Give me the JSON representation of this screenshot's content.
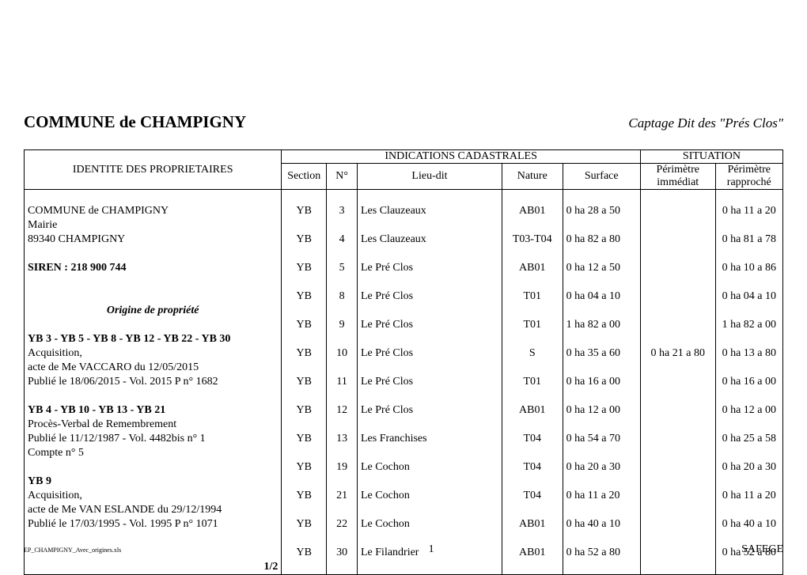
{
  "header": {
    "title": "COMMUNE de CHAMPIGNY",
    "subtitle": "Captage Dit des \"Prés Clos\""
  },
  "columns": {
    "identity": "IDENTITE DES PROPRIETAIRES",
    "indications": "INDICATIONS CADASTRALES",
    "situation": "SITUATION",
    "section": "Section",
    "num": "N°",
    "lieudit": "Lieu-dit",
    "nature": "Nature",
    "surface": "Surface",
    "perim_i_1": "Périmètre",
    "perim_i_2": "immédiat",
    "perim_r_1": "Périmètre",
    "perim_r_2": "rapproché"
  },
  "identity_lines": [
    {
      "t": "",
      "cls": ""
    },
    {
      "t": "COMMUNE de CHAMPIGNY",
      "cls": ""
    },
    {
      "t": "Mairie",
      "cls": ""
    },
    {
      "t": "89340 CHAMPIGNY",
      "cls": ""
    },
    {
      "t": "",
      "cls": ""
    },
    {
      "t": "SIREN : 218 900 744",
      "cls": "bold"
    },
    {
      "t": "",
      "cls": ""
    },
    {
      "t": "",
      "cls": ""
    },
    {
      "t": "Origine de propriété",
      "cls": "ital-center"
    },
    {
      "t": "",
      "cls": ""
    },
    {
      "t": "YB 3 - YB 5 - YB 8 - YB 12 - YB 22 - YB 30",
      "cls": "bold"
    },
    {
      "t": "Acquisition,",
      "cls": ""
    },
    {
      "t": "acte de Me VACCARO du 12/05/2015",
      "cls": ""
    },
    {
      "t": "Publié le 18/06/2015 - Vol. 2015 P n° 1682",
      "cls": ""
    },
    {
      "t": "",
      "cls": ""
    },
    {
      "t": "YB 4 - YB 10 - YB 13 - YB 21",
      "cls": "bold"
    },
    {
      "t": "Procès-Verbal de Remembrement",
      "cls": ""
    },
    {
      "t": "Publié le 11/12/1987 - Vol. 4482bis n° 1",
      "cls": ""
    },
    {
      "t": "Compte n° 5",
      "cls": ""
    },
    {
      "t": "",
      "cls": ""
    },
    {
      "t": "YB 9",
      "cls": "bold"
    },
    {
      "t": "Acquisition,",
      "cls": ""
    },
    {
      "t": "acte de Me VAN ESLANDE du 29/12/1994",
      "cls": ""
    },
    {
      "t": "Publié le 17/03/1995 - Vol. 1995 P n° 1071",
      "cls": ""
    },
    {
      "t": "",
      "cls": ""
    },
    {
      "t": "",
      "cls": ""
    },
    {
      "t": "",
      "cls": ""
    }
  ],
  "right_lines": [
    {
      "section": "",
      "num": "",
      "lieudit": "",
      "nature": "",
      "surface": "",
      "pi": "",
      "pr": ""
    },
    {
      "section": "YB",
      "num": "3",
      "lieudit": "Les Clauzeaux",
      "nature": "AB01",
      "surface": "0 ha 28 a 50",
      "pi": "",
      "pr": "0 ha 11 a 20"
    },
    {
      "section": "",
      "num": "",
      "lieudit": "",
      "nature": "",
      "surface": "",
      "pi": "",
      "pr": ""
    },
    {
      "section": "YB",
      "num": "4",
      "lieudit": "Les Clauzeaux",
      "nature": "T03-T04",
      "surface": "0 ha 82 a 80",
      "pi": "",
      "pr": "0 ha 81 a 78"
    },
    {
      "section": "",
      "num": "",
      "lieudit": "",
      "nature": "",
      "surface": "",
      "pi": "",
      "pr": ""
    },
    {
      "section": "YB",
      "num": "5",
      "lieudit": "Le Pré Clos",
      "nature": "AB01",
      "surface": "0 ha 12 a 50",
      "pi": "",
      "pr": "0 ha 10 a 86"
    },
    {
      "section": "",
      "num": "",
      "lieudit": "",
      "nature": "",
      "surface": "",
      "pi": "",
      "pr": ""
    },
    {
      "section": "YB",
      "num": "8",
      "lieudit": "Le Pré Clos",
      "nature": "T01",
      "surface": "0 ha 04 a 10",
      "pi": "",
      "pr": "0 ha 04 a 10"
    },
    {
      "section": "",
      "num": "",
      "lieudit": "",
      "nature": "",
      "surface": "",
      "pi": "",
      "pr": ""
    },
    {
      "section": "YB",
      "num": "9",
      "lieudit": "Le Pré Clos",
      "nature": "T01",
      "surface": "1 ha 82 a 00",
      "pi": "",
      "pr": "1 ha 82 a 00"
    },
    {
      "section": "",
      "num": "",
      "lieudit": "",
      "nature": "",
      "surface": "",
      "pi": "",
      "pr": ""
    },
    {
      "section": "YB",
      "num": "10",
      "lieudit": "Le Pré Clos",
      "nature": "S",
      "surface": "0 ha 35 a 60",
      "pi": "0 ha 21 a 80",
      "pr": "0 ha 13 a 80"
    },
    {
      "section": "",
      "num": "",
      "lieudit": "",
      "nature": "",
      "surface": "",
      "pi": "",
      "pr": ""
    },
    {
      "section": "YB",
      "num": "11",
      "lieudit": "Le Pré Clos",
      "nature": "T01",
      "surface": "0 ha 16 a 00",
      "pi": "",
      "pr": "0 ha 16 a 00"
    },
    {
      "section": "",
      "num": "",
      "lieudit": "",
      "nature": "",
      "surface": "",
      "pi": "",
      "pr": ""
    },
    {
      "section": "YB",
      "num": "12",
      "lieudit": "Le Pré Clos",
      "nature": "AB01",
      "surface": "0 ha 12 a 00",
      "pi": "",
      "pr": "0 ha 12 a 00"
    },
    {
      "section": "",
      "num": "",
      "lieudit": "",
      "nature": "",
      "surface": "",
      "pi": "",
      "pr": ""
    },
    {
      "section": "YB",
      "num": "13",
      "lieudit": "Les Franchises",
      "nature": "T04",
      "surface": "0 ha 54 a 70",
      "pi": "",
      "pr": "0 ha 25 a 58"
    },
    {
      "section": "",
      "num": "",
      "lieudit": "",
      "nature": "",
      "surface": "",
      "pi": "",
      "pr": ""
    },
    {
      "section": "YB",
      "num": "19",
      "lieudit": "Le Cochon",
      "nature": "T04",
      "surface": "0 ha 20 a 30",
      "pi": "",
      "pr": "0 ha 20 a 30"
    },
    {
      "section": "",
      "num": "",
      "lieudit": "",
      "nature": "",
      "surface": "",
      "pi": "",
      "pr": ""
    },
    {
      "section": "YB",
      "num": "21",
      "lieudit": "Le Cochon",
      "nature": "T04",
      "surface": "0 ha 11 a 20",
      "pi": "",
      "pr": "0 ha 11 a 20"
    },
    {
      "section": "",
      "num": "",
      "lieudit": "",
      "nature": "",
      "surface": "",
      "pi": "",
      "pr": ""
    },
    {
      "section": "YB",
      "num": "22",
      "lieudit": "Le Cochon",
      "nature": "AB01",
      "surface": "0 ha 40 a 10",
      "pi": "",
      "pr": "0 ha 40 a 10"
    },
    {
      "section": "",
      "num": "",
      "lieudit": "",
      "nature": "",
      "surface": "",
      "pi": "",
      "pr": ""
    },
    {
      "section": "YB",
      "num": "30",
      "lieudit": "Le Filandrier",
      "nature": "AB01",
      "surface": "0 ha 52 a 80",
      "pi": "",
      "pr": "0 ha 52 a 80"
    },
    {
      "section": "",
      "num": "",
      "lieudit": "",
      "nature": "",
      "surface": "",
      "pi": "",
      "pr": ""
    }
  ],
  "page_frac": "1/2",
  "footer": {
    "filename": "EP_CHAMPIGNY_Avec_origines.xls",
    "page_number": "1",
    "right": "SAFEGE"
  }
}
